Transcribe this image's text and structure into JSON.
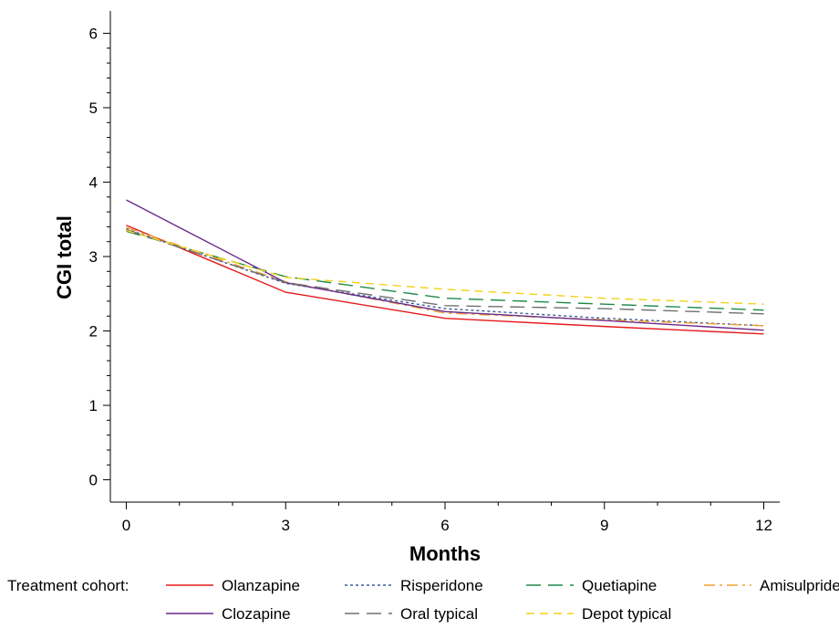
{
  "chart_data": {
    "type": "line",
    "xlabel": "Months",
    "ylabel": "CGI total",
    "x": [
      0,
      3,
      6,
      9,
      12
    ],
    "x_ticks": [
      "0",
      "3",
      "6",
      "9",
      "12"
    ],
    "y_ticks": [
      "0",
      "1",
      "2",
      "3",
      "4",
      "5",
      "6"
    ],
    "xlim": [
      -0.3,
      12.3
    ],
    "ylim": [
      -0.3,
      6.3
    ],
    "grid": false,
    "legend_title": "Treatment cohort:",
    "legend_position": "bottom",
    "series": [
      {
        "name": "Olanzapine",
        "values": [
          3.42,
          2.52,
          2.17,
          2.06,
          1.96
        ],
        "color": "#e41a1c",
        "dash": "solid"
      },
      {
        "name": "Risperidone",
        "values": [
          3.37,
          2.64,
          2.3,
          2.17,
          2.07
        ],
        "color": "#3a5a9a",
        "dash": "dotted"
      },
      {
        "name": "Quetiapine",
        "values": [
          3.34,
          2.73,
          2.44,
          2.36,
          2.28
        ],
        "color": "#1e8a4a",
        "dash": "longdash"
      },
      {
        "name": "Amisulpride",
        "values": [
          3.39,
          2.66,
          2.24,
          2.15,
          2.07
        ],
        "color": "#f0a030",
        "dash": "dashdot"
      },
      {
        "name": "Clozapine",
        "values": [
          3.76,
          2.65,
          2.26,
          2.14,
          2.01
        ],
        "color": "#6a2a8a",
        "dash": "solid"
      },
      {
        "name": "Oral typical",
        "values": [
          3.36,
          2.65,
          2.34,
          2.3,
          2.23
        ],
        "color": "#707070",
        "dash": "longdash"
      },
      {
        "name": "Depot typical",
        "values": [
          3.35,
          2.72,
          2.56,
          2.44,
          2.36
        ],
        "color": "#f2d21a",
        "dash": "dashed"
      }
    ]
  }
}
